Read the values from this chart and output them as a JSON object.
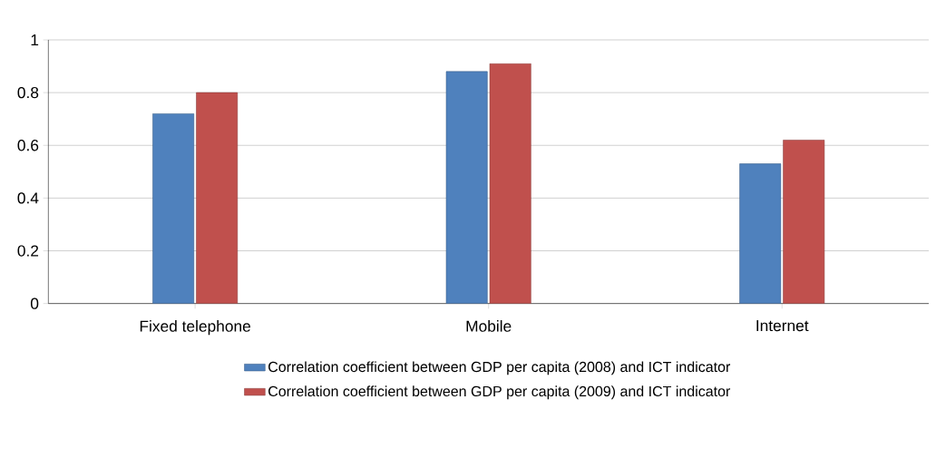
{
  "chart_data": {
    "type": "bar",
    "categories": [
      "Fixed telephone",
      "Mobile",
      "Internet"
    ],
    "series": [
      {
        "name": "Correlation coefficient between GDP per capita (2008) and ICT indicator",
        "color": "#4f81bd",
        "values": [
          0.72,
          0.88,
          0.53
        ]
      },
      {
        "name": "Correlation coefficient between GDP per capita (2009) and ICT indicator",
        "color": "#c0504d",
        "values": [
          0.8,
          0.91,
          0.62
        ]
      }
    ],
    "ylim": [
      0,
      1
    ],
    "yticks": [
      0,
      0.2,
      0.4,
      0.6,
      0.8,
      1
    ],
    "grid": "y",
    "legend": "bottom"
  }
}
